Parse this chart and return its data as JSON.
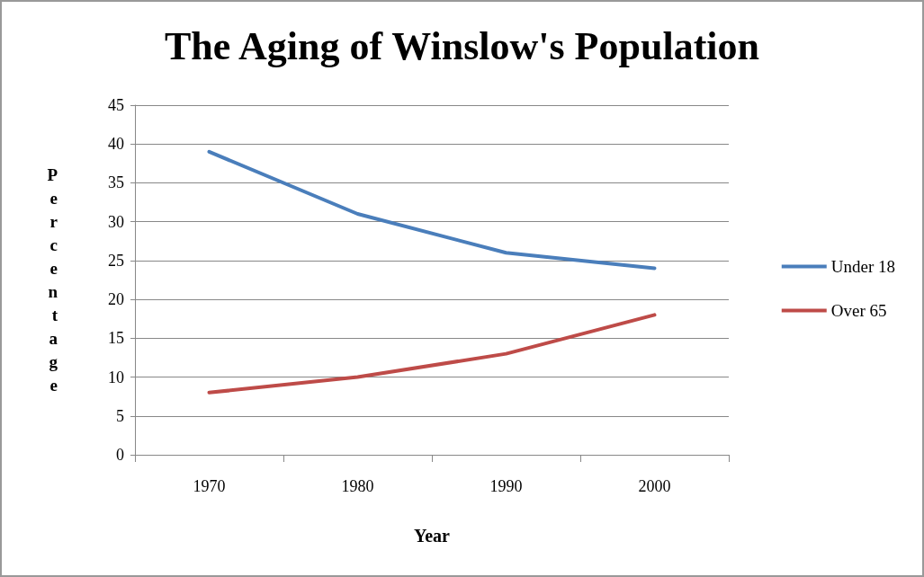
{
  "chart_data": {
    "type": "line",
    "title": "The Aging of Winslow's Population",
    "xlabel": "Year",
    "ylabel": "Percentage",
    "categories": [
      "1970",
      "1980",
      "1990",
      "2000"
    ],
    "series": [
      {
        "name": "Under 18",
        "color": "#4a7ebb",
        "values": [
          39,
          31,
          26,
          24
        ]
      },
      {
        "name": "Over 65",
        "color": "#be4b48",
        "values": [
          8,
          10,
          13,
          18
        ]
      }
    ],
    "ylim": [
      0,
      45
    ],
    "yticks": [
      0,
      5,
      10,
      15,
      20,
      25,
      30,
      35,
      40,
      45
    ],
    "grid": "y",
    "legend": "right",
    "marker": "none",
    "line_style": "solid"
  }
}
